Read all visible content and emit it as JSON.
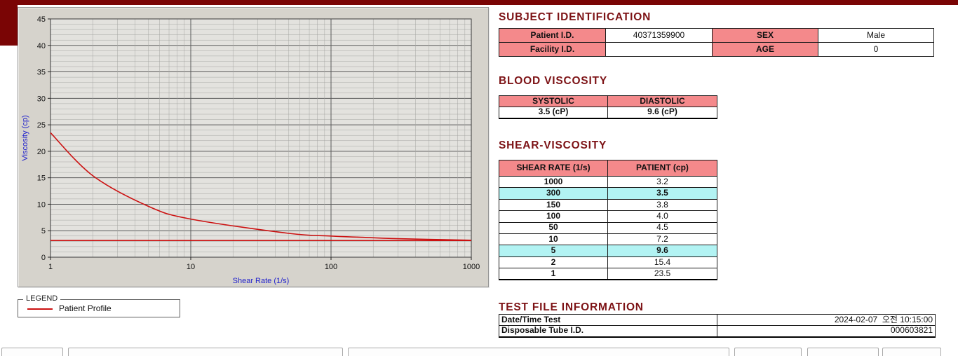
{
  "colors": {
    "maroon": "#7a0505",
    "heading": "#7d1316",
    "accent_pink": "#f4898b",
    "highlight_cyan": "#b2f3f3",
    "chart_line": "#cc1111"
  },
  "legend": {
    "title": "LEGEND",
    "items": [
      {
        "label": "Patient Profile",
        "color": "#cc1111"
      }
    ]
  },
  "subject": {
    "title": "SUBJECT IDENTIFICATION",
    "fields": [
      {
        "label": "Patient I.D.",
        "value": "40371359900"
      },
      {
        "label": "SEX",
        "value": "Male"
      },
      {
        "label": "Facility I.D.",
        "value": ""
      },
      {
        "label": "AGE",
        "value": "0"
      }
    ]
  },
  "blood_viscosity": {
    "title": "BLOOD VISCOSITY",
    "columns": [
      {
        "label": "SYSTOLIC",
        "value": "3.5 (cP)"
      },
      {
        "label": "DIASTOLIC",
        "value": "9.6 (cP)"
      }
    ]
  },
  "shear_viscosity": {
    "title": "SHEAR-VISCOSITY",
    "headers": [
      "SHEAR RATE (1/s)",
      "PATIENT (cp)"
    ],
    "rows": [
      {
        "rate": "1000",
        "value": "3.2",
        "highlight": false
      },
      {
        "rate": "300",
        "value": "3.5",
        "highlight": true
      },
      {
        "rate": "150",
        "value": "3.8",
        "highlight": false
      },
      {
        "rate": "100",
        "value": "4.0",
        "highlight": false
      },
      {
        "rate": "50",
        "value": "4.5",
        "highlight": false
      },
      {
        "rate": "10",
        "value": "7.2",
        "highlight": false
      },
      {
        "rate": "5",
        "value": "9.6",
        "highlight": true
      },
      {
        "rate": "2",
        "value": "15.4",
        "highlight": false
      },
      {
        "rate": "1",
        "value": "23.5",
        "highlight": false
      }
    ]
  },
  "test_file": {
    "title": "TEST FILE INFORMATION",
    "rows": [
      {
        "label": "Date/Time Test",
        "value": "2024-02-07  오전 10:15:00"
      },
      {
        "label": "Disposable Tube I.D.",
        "value": "000603821"
      }
    ]
  },
  "chart_data": {
    "type": "line",
    "xscale": "log",
    "xlim": [
      1,
      1000
    ],
    "ylim": [
      0,
      45
    ],
    "xticks": [
      1,
      10,
      100,
      1000
    ],
    "yticks": [
      0,
      5,
      10,
      15,
      20,
      25,
      30,
      35,
      40,
      45
    ],
    "xlabel": "Shear Rate (1/s)",
    "ylabel": "Viscosity (cp)",
    "grid": true,
    "legend_position": "below-left",
    "series": [
      {
        "name": "Patient Profile",
        "color": "#cc1111",
        "x": [
          1,
          2,
          5,
          10,
          50,
          100,
          150,
          300,
          1000
        ],
        "y": [
          23.5,
          15.4,
          9.6,
          7.2,
          4.5,
          4.0,
          3.8,
          3.5,
          3.2
        ]
      },
      {
        "name": "baseline",
        "color": "#cc1111",
        "x": [
          1,
          1000
        ],
        "y": [
          3.15,
          3.15
        ]
      }
    ]
  }
}
